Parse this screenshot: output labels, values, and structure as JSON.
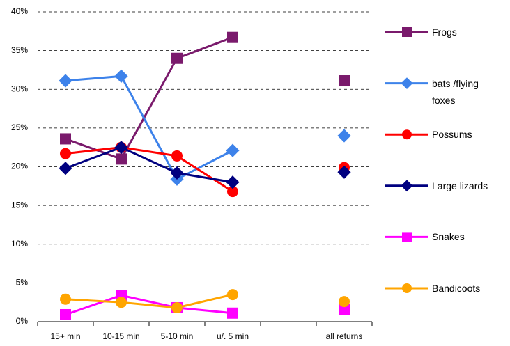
{
  "chart_data": {
    "type": "line",
    "categories": [
      "15+ min",
      "10-15 min",
      "5-10 min",
      "u/. 5 min",
      null,
      "all returns"
    ],
    "series": [
      {
        "name": "Frogs",
        "color": "#7a1a6c",
        "marker": "square",
        "values": [
          23.6,
          21.0,
          34.0,
          36.7,
          null,
          31.1
        ]
      },
      {
        "name": "bats /flying foxes",
        "color": "#3d82ea",
        "marker": "diamond",
        "values": [
          31.1,
          31.7,
          18.4,
          22.1,
          null,
          24.0
        ]
      },
      {
        "name": "Possums",
        "color": "#ff0000",
        "marker": "circle",
        "values": [
          21.7,
          22.5,
          21.4,
          16.8,
          null,
          19.9
        ]
      },
      {
        "name": "Large lizards",
        "color": "#000080",
        "marker": "diamond",
        "values": [
          19.8,
          22.5,
          19.2,
          18.0,
          null,
          19.3
        ]
      },
      {
        "name": "Snakes",
        "color": "#ff00ff",
        "marker": "square",
        "values": [
          0.9,
          3.4,
          1.8,
          1.1,
          null,
          1.6
        ]
      },
      {
        "name": "Bandicoots",
        "color": "#ffa500",
        "marker": "circle",
        "values": [
          2.9,
          2.5,
          1.8,
          3.5,
          null,
          2.6
        ]
      }
    ],
    "ylim": [
      0,
      40
    ],
    "yticks": [
      {
        "value": 0,
        "label": "0%"
      },
      {
        "value": 5,
        "label": "5%"
      },
      {
        "value": 10,
        "label": "10%"
      },
      {
        "value": 15,
        "label": "15%"
      },
      {
        "value": 20,
        "label": "20%"
      },
      {
        "value": 25,
        "label": "25%"
      },
      {
        "value": 30,
        "label": "30%"
      },
      {
        "value": 35,
        "label": "35%"
      },
      {
        "value": 40,
        "label": "40%"
      }
    ],
    "grid": true
  }
}
